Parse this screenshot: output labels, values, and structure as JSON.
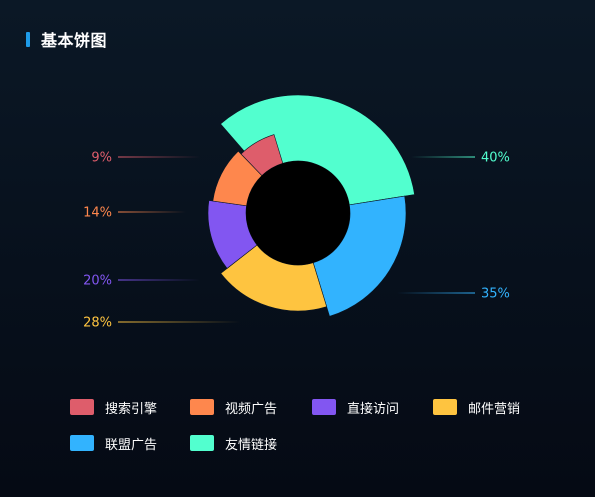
{
  "header": {
    "title": "基本饼图"
  },
  "chart_data": {
    "type": "pie",
    "variant": "rose-donut",
    "title": "基本饼图",
    "series": [
      {
        "name": "友情链接",
        "percent": "40%",
        "value": 40,
        "color": "#52ffcf"
      },
      {
        "name": "联盟广告",
        "percent": "35%",
        "value": 35,
        "color": "#32b3fe"
      },
      {
        "name": "邮件营销",
        "percent": "28%",
        "value": 28,
        "color": "#fec440"
      },
      {
        "name": "直接访问",
        "percent": "20%",
        "value": 20,
        "color": "#8256f1"
      },
      {
        "name": "视频广告",
        "percent": "14%",
        "value": 14,
        "color": "#fe874d"
      },
      {
        "name": "搜索引擎",
        "percent": "9%",
        "value": 9,
        "color": "#de5d6b"
      }
    ],
    "legend_position": "bottom",
    "hole_color": "#000000"
  },
  "legend": {
    "items": [
      {
        "label": "搜索引擎",
        "color": "#de5d6b"
      },
      {
        "label": "视频广告",
        "color": "#fe874d"
      },
      {
        "label": "直接访问",
        "color": "#8256f1"
      },
      {
        "label": "邮件营销",
        "color": "#fec440"
      },
      {
        "label": "联盟广告",
        "color": "#32b3fe"
      },
      {
        "label": "友情链接",
        "color": "#52ffcf"
      }
    ]
  }
}
